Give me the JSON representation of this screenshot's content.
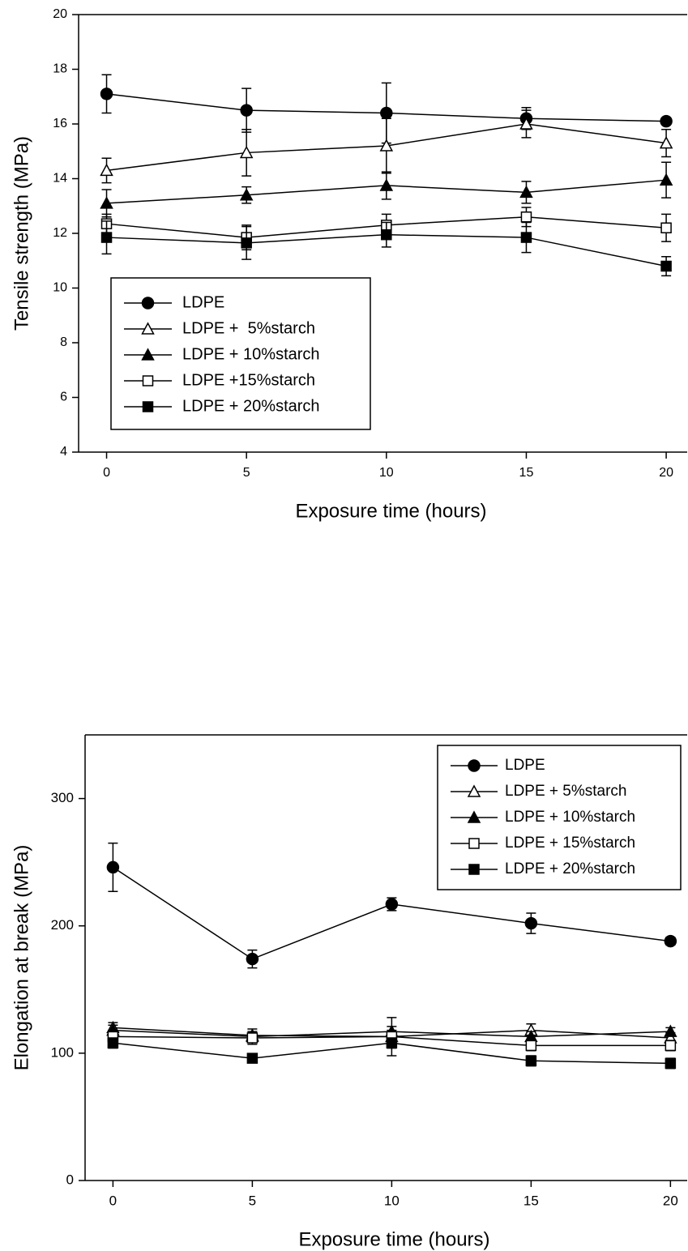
{
  "chart_data": [
    {
      "type": "line",
      "xlabel": "Exposure time (hours)",
      "ylabel": "Tensile strength (MPa)",
      "x": [
        0,
        5,
        10,
        15,
        20
      ],
      "xlim": [
        -1,
        20.75
      ],
      "xticks": [
        0,
        5,
        10,
        15,
        20
      ],
      "ylim": [
        4,
        20
      ],
      "yticks": [
        4,
        6,
        8,
        10,
        12,
        14,
        16,
        18,
        20
      ],
      "legend": "lower left",
      "series": [
        {
          "name": "LDPE",
          "color": "#000000",
          "marker": "circle",
          "filled": true,
          "values": [
            17.1,
            16.5,
            16.4,
            16.2,
            16.1
          ],
          "errors": [
            0.7,
            0.8,
            1.1,
            0.4,
            0.1
          ]
        },
        {
          "name": "LDPE +  5%starch",
          "color": "#000000",
          "marker": "triangle",
          "filled": false,
          "values": [
            14.3,
            14.95,
            15.2,
            16.0,
            15.3
          ],
          "errors": [
            0.45,
            0.85,
            1.0,
            0.5,
            0.5
          ]
        },
        {
          "name": "LDPE + 10%starch",
          "color": "#000000",
          "marker": "triangle",
          "filled": true,
          "values": [
            13.1,
            13.4,
            13.75,
            13.5,
            13.95
          ],
          "errors": [
            0.5,
            0.3,
            0.5,
            0.4,
            0.65
          ]
        },
        {
          "name": "LDPE +15%starch",
          "color": "#000000",
          "marker": "square",
          "filled": false,
          "values": [
            12.35,
            11.85,
            12.3,
            12.6,
            12.2
          ],
          "errors": [
            0.35,
            0.45,
            0.4,
            0.35,
            0.5
          ]
        },
        {
          "name": "LDPE + 20%starch",
          "color": "#000000",
          "marker": "square",
          "filled": true,
          "values": [
            11.85,
            11.65,
            11.95,
            11.85,
            10.8
          ],
          "errors": [
            0.6,
            0.6,
            0.45,
            0.55,
            0.35
          ]
        }
      ]
    },
    {
      "type": "line",
      "xlabel": "Exposure time (hours)",
      "ylabel": "Elongation at break (MPa)",
      "x": [
        0,
        5,
        10,
        15,
        20
      ],
      "xlim": [
        -1,
        20.6
      ],
      "xticks": [
        0,
        5,
        10,
        15,
        20
      ],
      "ylim": [
        0,
        350
      ],
      "yticks": [
        0,
        100,
        200,
        300
      ],
      "legend": "upper right",
      "series": [
        {
          "name": "LDPE",
          "color": "#000000",
          "marker": "circle",
          "filled": true,
          "values": [
            246,
            174,
            217,
            202,
            188
          ],
          "errors": [
            19,
            7,
            5,
            8,
            3
          ]
        },
        {
          "name": "LDPE + 5%starch",
          "color": "#000000",
          "marker": "triangle",
          "filled": false,
          "values": [
            120,
            114,
            113,
            118,
            112
          ],
          "errors": [
            4,
            5,
            15,
            5,
            4
          ]
        },
        {
          "name": "LDPE + 10%starch",
          "color": "#000000",
          "marker": "triangle",
          "filled": true,
          "values": [
            118,
            113,
            117,
            113,
            117
          ],
          "errors": [
            4,
            3,
            4,
            4,
            3
          ]
        },
        {
          "name": "LDPE + 15%starch",
          "color": "#000000",
          "marker": "square",
          "filled": false,
          "values": [
            113,
            112,
            113,
            106,
            106
          ],
          "errors": [
            5,
            5,
            5,
            4,
            4
          ]
        },
        {
          "name": "LDPE + 20%starch",
          "color": "#000000",
          "marker": "square",
          "filled": true,
          "values": [
            108,
            96,
            108,
            94,
            92
          ],
          "errors": [
            4,
            3,
            4,
            4,
            4
          ]
        }
      ]
    }
  ]
}
